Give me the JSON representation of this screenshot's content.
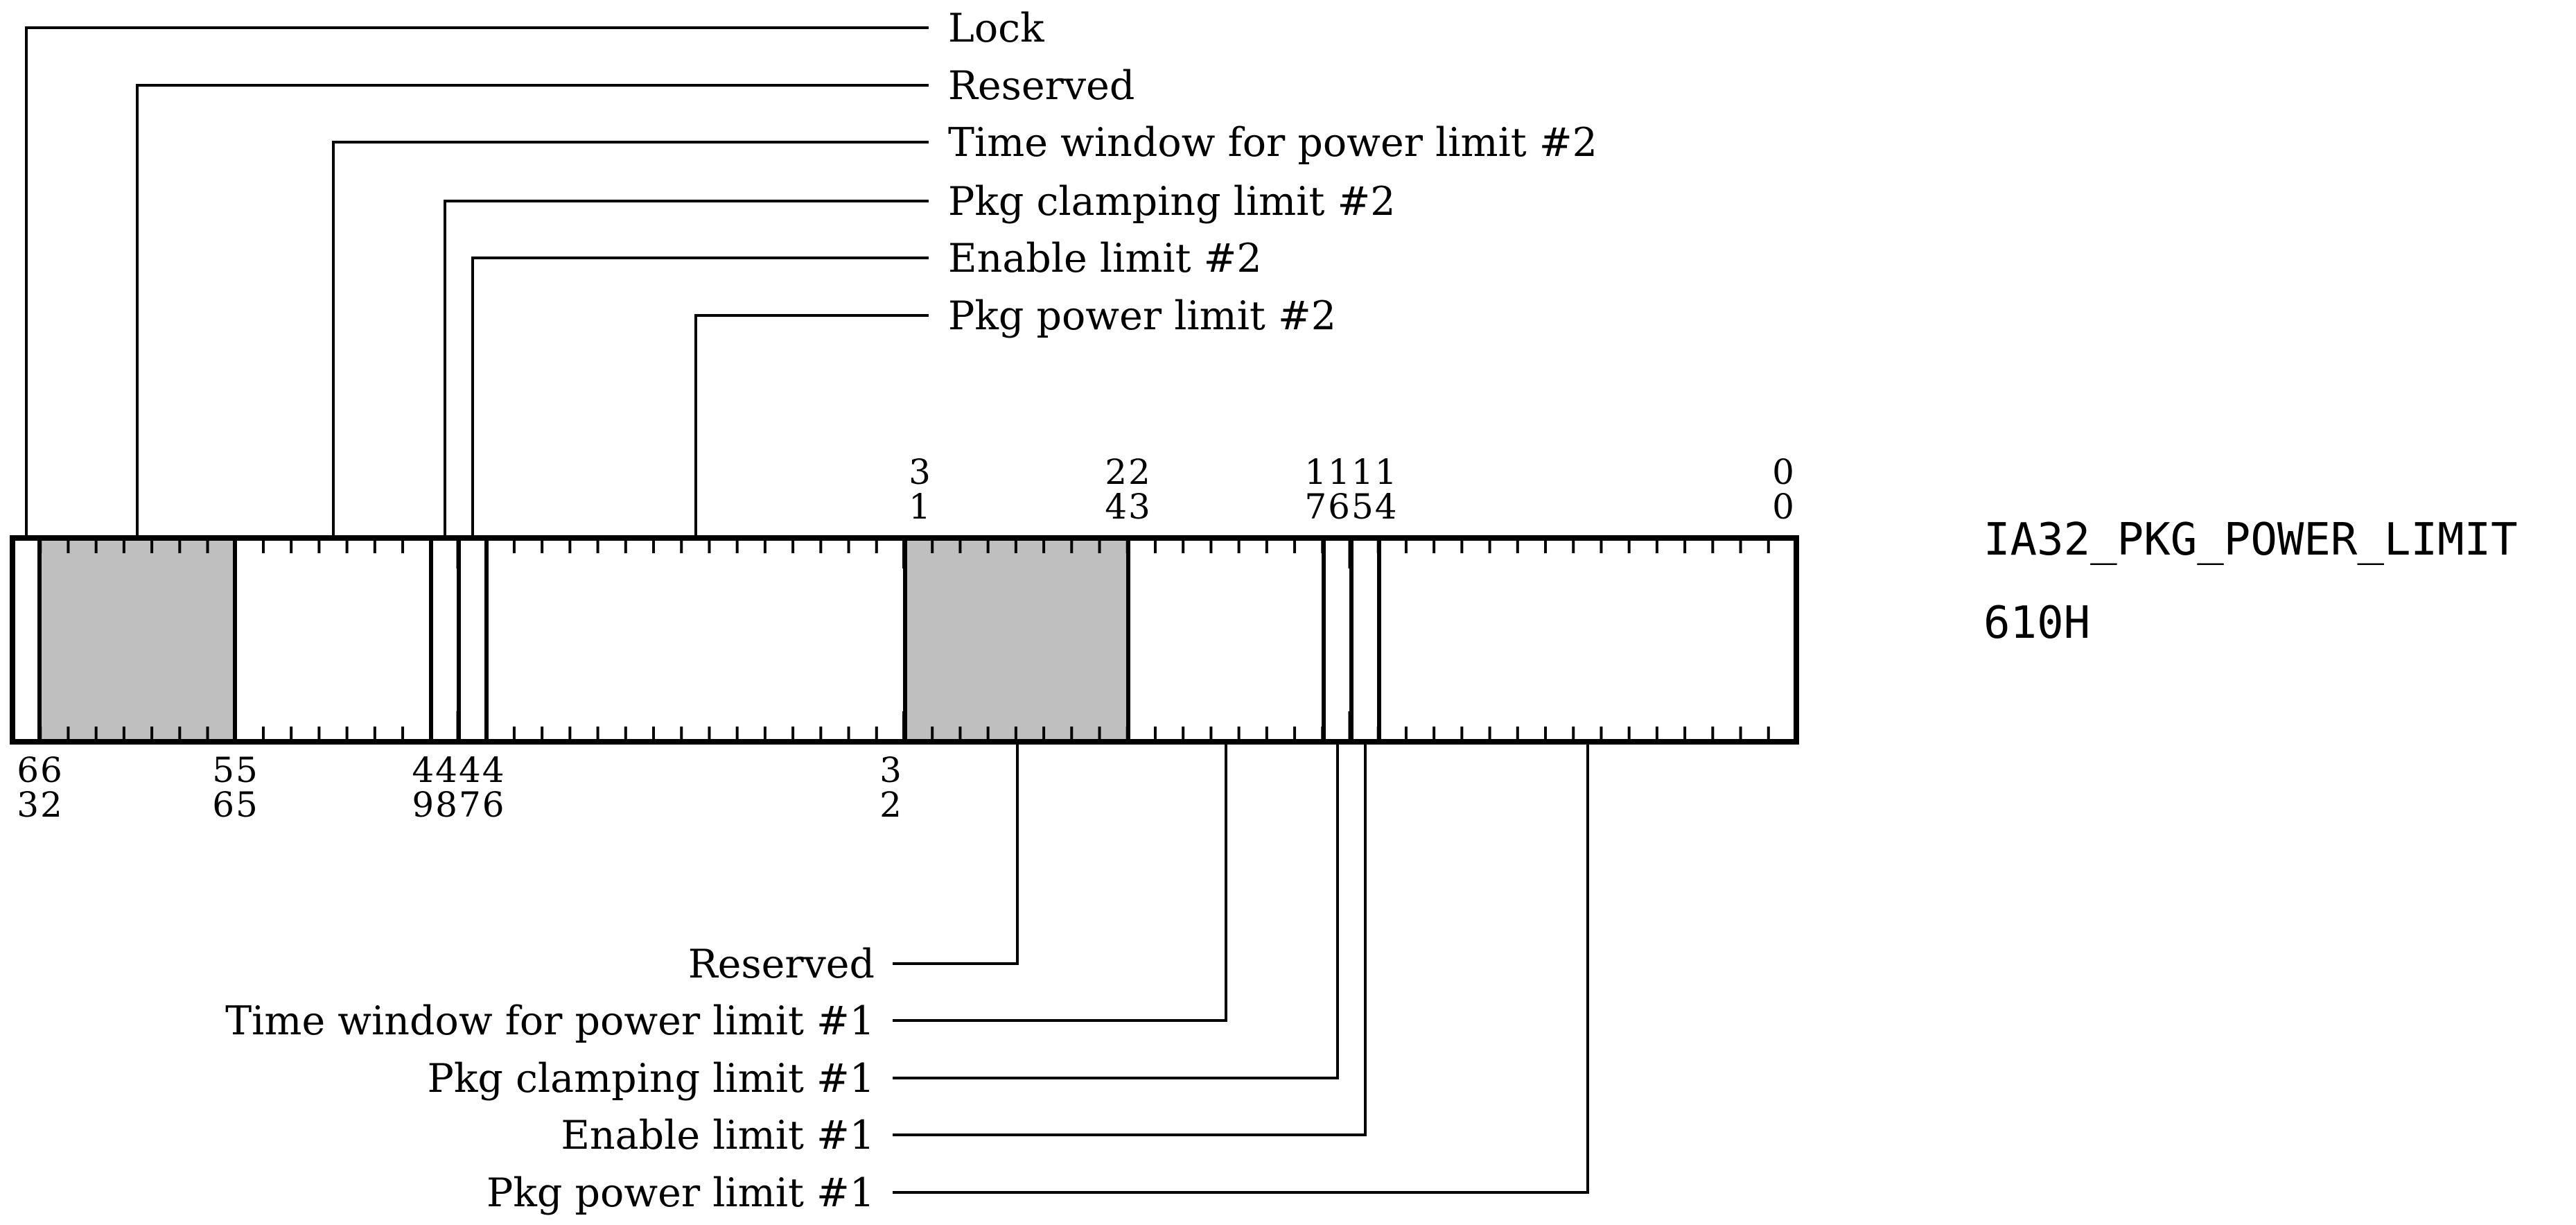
{
  "register": {
    "name": "IA32_PKG_POWER_LIMIT",
    "address": "610H"
  },
  "upper_fields": [
    {
      "label": "Lock"
    },
    {
      "label": "Reserved"
    },
    {
      "label": "Time window for power limit #2"
    },
    {
      "label": "Pkg clamping limit #2"
    },
    {
      "label": "Enable limit #2"
    },
    {
      "label": "Pkg power limit #2"
    }
  ],
  "lower_fields": [
    {
      "label": "Reserved"
    },
    {
      "label": "Time window for power limit #1"
    },
    {
      "label": "Pkg clamping limit #1"
    },
    {
      "label": "Enable limit #1"
    },
    {
      "label": "Pkg power limit #1"
    }
  ],
  "top_bit_numbers": [
    {
      "top": "3",
      "bottom": "1"
    },
    {
      "top": "22",
      "bottom": "43"
    },
    {
      "top": "1111",
      "bottom": "7654"
    },
    {
      "top": "0",
      "bottom": "0"
    }
  ],
  "bottom_bit_numbers": [
    {
      "top": "66",
      "bottom": "32"
    },
    {
      "top": "55",
      "bottom": "65"
    },
    {
      "top": "4444",
      "bottom": "9876"
    },
    {
      "top": "3",
      "bottom": "2"
    }
  ],
  "colors": {
    "shaded_field": "#bfbfbf",
    "line": "#000000"
  }
}
